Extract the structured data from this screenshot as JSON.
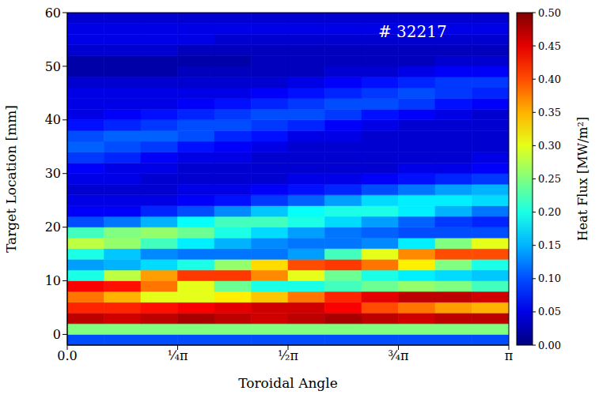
{
  "chart_data": {
    "type": "heatmap",
    "annotation": "# 32217",
    "x_label": "Toroidal Angle",
    "y_label": "Target Location [mm]",
    "xlim": [
      0,
      3.1416
    ],
    "xticks": [
      {
        "value": 0,
        "label": "0.0"
      },
      {
        "value": 0.7854,
        "label": "¼π"
      },
      {
        "value": 1.5708,
        "label": "½π"
      },
      {
        "value": 2.3562,
        "label": "¾π"
      },
      {
        "value": 3.1416,
        "label": "π"
      }
    ],
    "ylim": [
      -2,
      60
    ],
    "yticks": [
      0,
      10,
      20,
      30,
      40,
      50,
      60
    ],
    "x_bins": [
      0,
      0.2618,
      0.5236,
      0.7854,
      1.0472,
      1.309,
      1.5708,
      1.8326,
      2.0944,
      2.3562,
      2.618,
      2.8798,
      3.1416
    ],
    "y_bins": [
      -2,
      0,
      2,
      4,
      6,
      8,
      10,
      12,
      14,
      16,
      18,
      20,
      22,
      24,
      26,
      28,
      30,
      32,
      34,
      36,
      38,
      40,
      42,
      44,
      46,
      48,
      50,
      52,
      54,
      56,
      58,
      60
    ],
    "values": [
      [
        0.1,
        0.1,
        0.1,
        0.1,
        0.1,
        0.1,
        0.1,
        0.1,
        0.1,
        0.1,
        0.1,
        0.1
      ],
      [
        0.25,
        0.25,
        0.25,
        0.25,
        0.25,
        0.25,
        0.25,
        0.25,
        0.25,
        0.25,
        0.25,
        0.25
      ],
      [
        0.47,
        0.46,
        0.47,
        0.48,
        0.47,
        0.46,
        0.47,
        0.48,
        0.47,
        0.46,
        0.47,
        0.47
      ],
      [
        0.42,
        0.42,
        0.43,
        0.44,
        0.45,
        0.46,
        0.46,
        0.44,
        0.4,
        0.38,
        0.36,
        0.35
      ],
      [
        0.38,
        0.35,
        0.3,
        0.3,
        0.32,
        0.34,
        0.38,
        0.42,
        0.45,
        0.47,
        0.47,
        0.46
      ],
      [
        0.44,
        0.43,
        0.38,
        0.3,
        0.24,
        0.2,
        0.2,
        0.22,
        0.24,
        0.26,
        0.25,
        0.22
      ],
      [
        0.2,
        0.28,
        0.36,
        0.41,
        0.41,
        0.37,
        0.3,
        0.24,
        0.2,
        0.18,
        0.17,
        0.16
      ],
      [
        0.14,
        0.15,
        0.17,
        0.2,
        0.26,
        0.33,
        0.4,
        0.41,
        0.38,
        0.32,
        0.25,
        0.2
      ],
      [
        0.2,
        0.16,
        0.13,
        0.12,
        0.12,
        0.12,
        0.14,
        0.22,
        0.3,
        0.37,
        0.4,
        0.4
      ],
      [
        0.28,
        0.26,
        0.22,
        0.18,
        0.15,
        0.13,
        0.12,
        0.12,
        0.13,
        0.18,
        0.25,
        0.3
      ],
      [
        0.22,
        0.25,
        0.26,
        0.24,
        0.2,
        0.17,
        0.14,
        0.12,
        0.11,
        0.1,
        0.1,
        0.1
      ],
      [
        0.1,
        0.12,
        0.15,
        0.19,
        0.22,
        0.22,
        0.2,
        0.17,
        0.14,
        0.11,
        0.09,
        0.08
      ],
      [
        0.06,
        0.06,
        0.08,
        0.1,
        0.13,
        0.16,
        0.19,
        0.2,
        0.2,
        0.18,
        0.15,
        0.12
      ],
      [
        0.05,
        0.05,
        0.05,
        0.06,
        0.07,
        0.09,
        0.11,
        0.14,
        0.17,
        0.18,
        0.18,
        0.17
      ],
      [
        0.04,
        0.04,
        0.04,
        0.05,
        0.05,
        0.06,
        0.07,
        0.08,
        0.1,
        0.12,
        0.14,
        0.15
      ],
      [
        0.05,
        0.05,
        0.04,
        0.04,
        0.04,
        0.04,
        0.05,
        0.05,
        0.06,
        0.07,
        0.08,
        0.09
      ],
      [
        0.06,
        0.05,
        0.05,
        0.04,
        0.04,
        0.04,
        0.04,
        0.04,
        0.04,
        0.05,
        0.05,
        0.06
      ],
      [
        0.09,
        0.08,
        0.06,
        0.05,
        0.05,
        0.04,
        0.04,
        0.04,
        0.04,
        0.04,
        0.04,
        0.05
      ],
      [
        0.11,
        0.1,
        0.09,
        0.07,
        0.06,
        0.05,
        0.04,
        0.04,
        0.04,
        0.04,
        0.04,
        0.04
      ],
      [
        0.1,
        0.11,
        0.11,
        0.1,
        0.08,
        0.07,
        0.05,
        0.05,
        0.04,
        0.04,
        0.04,
        0.04
      ],
      [
        0.07,
        0.08,
        0.09,
        0.1,
        0.1,
        0.09,
        0.08,
        0.06,
        0.05,
        0.04,
        0.04,
        0.04
      ],
      [
        0.05,
        0.06,
        0.07,
        0.08,
        0.09,
        0.1,
        0.1,
        0.09,
        0.07,
        0.06,
        0.05,
        0.04
      ],
      [
        0.05,
        0.05,
        0.05,
        0.06,
        0.07,
        0.08,
        0.09,
        0.1,
        0.1,
        0.09,
        0.07,
        0.06
      ],
      [
        0.05,
        0.05,
        0.05,
        0.05,
        0.05,
        0.06,
        0.07,
        0.08,
        0.09,
        0.1,
        0.09,
        0.08
      ],
      [
        0.04,
        0.04,
        0.04,
        0.04,
        0.04,
        0.04,
        0.05,
        0.06,
        0.07,
        0.08,
        0.09,
        0.09
      ],
      [
        0.02,
        0.02,
        0.02,
        0.03,
        0.03,
        0.03,
        0.03,
        0.04,
        0.04,
        0.05,
        0.06,
        0.06
      ],
      [
        0.02,
        0.02,
        0.02,
        0.02,
        0.02,
        0.03,
        0.03,
        0.03,
        0.03,
        0.03,
        0.04,
        0.04
      ],
      [
        0.04,
        0.04,
        0.04,
        0.03,
        0.03,
        0.03,
        0.03,
        0.03,
        0.03,
        0.03,
        0.03,
        0.03
      ],
      [
        0.05,
        0.05,
        0.05,
        0.05,
        0.04,
        0.04,
        0.04,
        0.04,
        0.04,
        0.04,
        0.04,
        0.04
      ],
      [
        0.05,
        0.05,
        0.05,
        0.05,
        0.05,
        0.05,
        0.05,
        0.05,
        0.05,
        0.05,
        0.05,
        0.05
      ],
      [
        0.04,
        0.04,
        0.04,
        0.04,
        0.04,
        0.04,
        0.04,
        0.04,
        0.04,
        0.04,
        0.04,
        0.04
      ]
    ],
    "colorbar": {
      "label": "Heat Flux [MW/m²]",
      "range": [
        0,
        0.5
      ],
      "ticks": [
        {
          "value": 0,
          "label": "0.00"
        },
        {
          "value": 0.05,
          "label": "0.05"
        },
        {
          "value": 0.1,
          "label": "0.10"
        },
        {
          "value": 0.15,
          "label": "0.15"
        },
        {
          "value": 0.2,
          "label": "0.20"
        },
        {
          "value": 0.25,
          "label": "0.25"
        },
        {
          "value": 0.3,
          "label": "0.30"
        },
        {
          "value": 0.35,
          "label": "0.35"
        },
        {
          "value": 0.4,
          "label": "0.40"
        },
        {
          "value": 0.45,
          "label": "0.45"
        },
        {
          "value": 0.5,
          "label": "0.50"
        }
      ]
    }
  }
}
